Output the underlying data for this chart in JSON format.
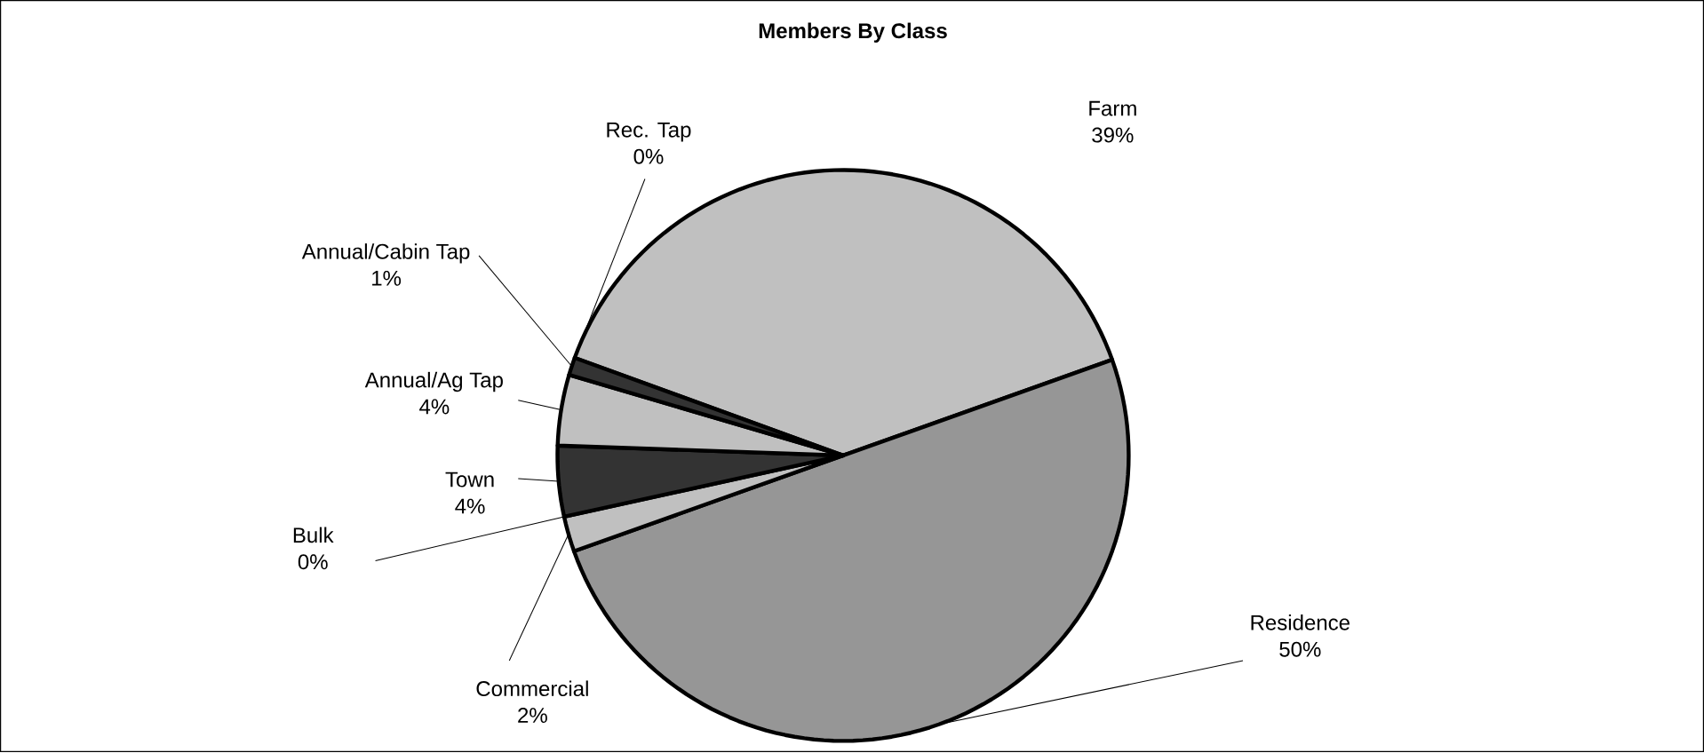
{
  "chart_data": {
    "type": "pie",
    "title": "Members By Class",
    "categories": [
      "Farm",
      "Residence",
      "Commercial",
      "Bulk",
      "Town",
      "Annual/Ag Tap",
      "Annual/Cabin Tap",
      "Rec. Tap"
    ],
    "values": [
      39,
      50,
      2,
      0,
      4,
      4,
      1,
      0
    ],
    "value_labels": [
      "39%",
      "50%",
      "2%",
      "0%",
      "4%",
      "4%",
      "1%",
      "0%"
    ],
    "colors": [
      "#c0c0c0",
      "#969696",
      "#c0c0c0",
      "#969696",
      "#333333",
      "#c0c0c0",
      "#333333",
      "#969696"
    ]
  }
}
